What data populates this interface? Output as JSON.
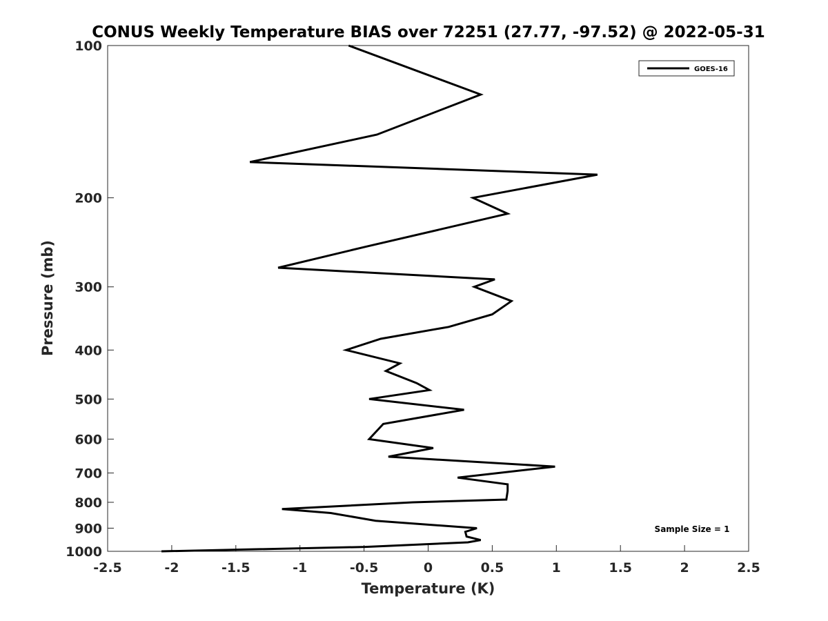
{
  "chart_data": {
    "type": "line",
    "title": "CONUS Weekly Temperature BIAS over 72251 (27.77, -97.52) @ 2022-05-31",
    "xlabel": "Temperature (K)",
    "ylabel": "Pressure (mb)",
    "xlim": [
      -2.5,
      2.5
    ],
    "ylim": [
      100,
      1000
    ],
    "y_scale": "log",
    "y_reversed": true,
    "xticks": [
      "-2.5",
      "-2",
      "-1.5",
      "-1",
      "-0.5",
      "0",
      "0.5",
      "1",
      "1.5",
      "2",
      "2.5"
    ],
    "yticks": [
      "100",
      "200",
      "300",
      "400",
      "500",
      "600",
      "700",
      "800",
      "900",
      "1000"
    ],
    "grid": false,
    "legend_position": "top-right",
    "annotation": "Sample Size = 1",
    "series": [
      {
        "name": "GOES-16",
        "color": "#000000",
        "points": [
          [
            -0.62,
            100
          ],
          [
            0.41,
            125
          ],
          [
            -0.4,
            150
          ],
          [
            -1.39,
            170
          ],
          [
            1.32,
            180
          ],
          [
            0.35,
            200
          ],
          [
            0.62,
            215
          ],
          [
            -0.49,
            250
          ],
          [
            -1.17,
            275
          ],
          [
            0.52,
            290
          ],
          [
            0.36,
            300
          ],
          [
            0.65,
            320
          ],
          [
            0.5,
            340
          ],
          [
            0.16,
            360
          ],
          [
            -0.37,
            380
          ],
          [
            -0.64,
            400
          ],
          [
            -0.22,
            425
          ],
          [
            -0.33,
            440
          ],
          [
            -0.09,
            465
          ],
          [
            0.01,
            480
          ],
          [
            -0.46,
            500
          ],
          [
            0.28,
            525
          ],
          [
            -0.35,
            560
          ],
          [
            -0.46,
            600
          ],
          [
            0.04,
            625
          ],
          [
            -0.31,
            650
          ],
          [
            0.99,
            680
          ],
          [
            0.23,
            715
          ],
          [
            0.62,
            737
          ],
          [
            0.62,
            760
          ],
          [
            0.61,
            790
          ],
          [
            -0.12,
            800
          ],
          [
            -1.14,
            825
          ],
          [
            -0.76,
            840
          ],
          [
            -0.41,
            870
          ],
          [
            0.38,
            900
          ],
          [
            0.29,
            915
          ],
          [
            0.3,
            935
          ],
          [
            0.41,
            950
          ],
          [
            0.31,
            960
          ],
          [
            -0.49,
            980
          ],
          [
            -2.08,
            1000
          ]
        ]
      }
    ]
  }
}
